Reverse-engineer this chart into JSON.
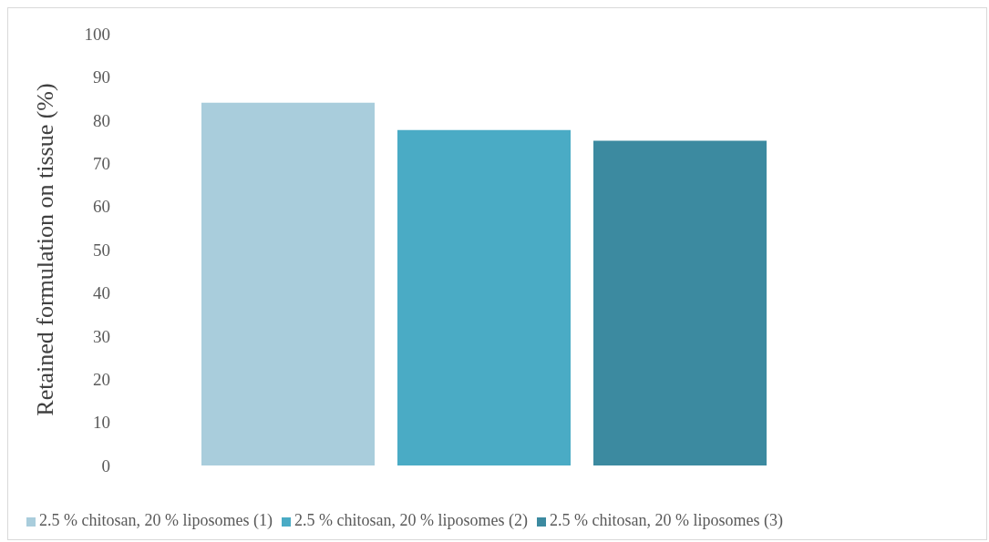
{
  "chart_data": {
    "type": "bar",
    "ylabel": "Retained formulation on tissue (%)",
    "categories": [
      null
    ],
    "series": [
      {
        "name": "2.5 % chitosan, 20 % liposomes (1)",
        "color": "#a9cddc",
        "values": [
          84
        ]
      },
      {
        "name": "2.5 % chitosan, 20 % liposomes (2)",
        "color": "#4aabc5",
        "values": [
          77.7
        ]
      },
      {
        "name": "2.5 % chitosan, 20 % liposomes (3)",
        "color": "#3c8aa0",
        "values": [
          75.2
        ]
      }
    ],
    "ylim": [
      0,
      100
    ],
    "yticks": [
      0,
      10,
      20,
      30,
      40,
      50,
      60,
      70,
      80,
      90,
      100
    ],
    "grid": false,
    "legend": "bottom"
  }
}
